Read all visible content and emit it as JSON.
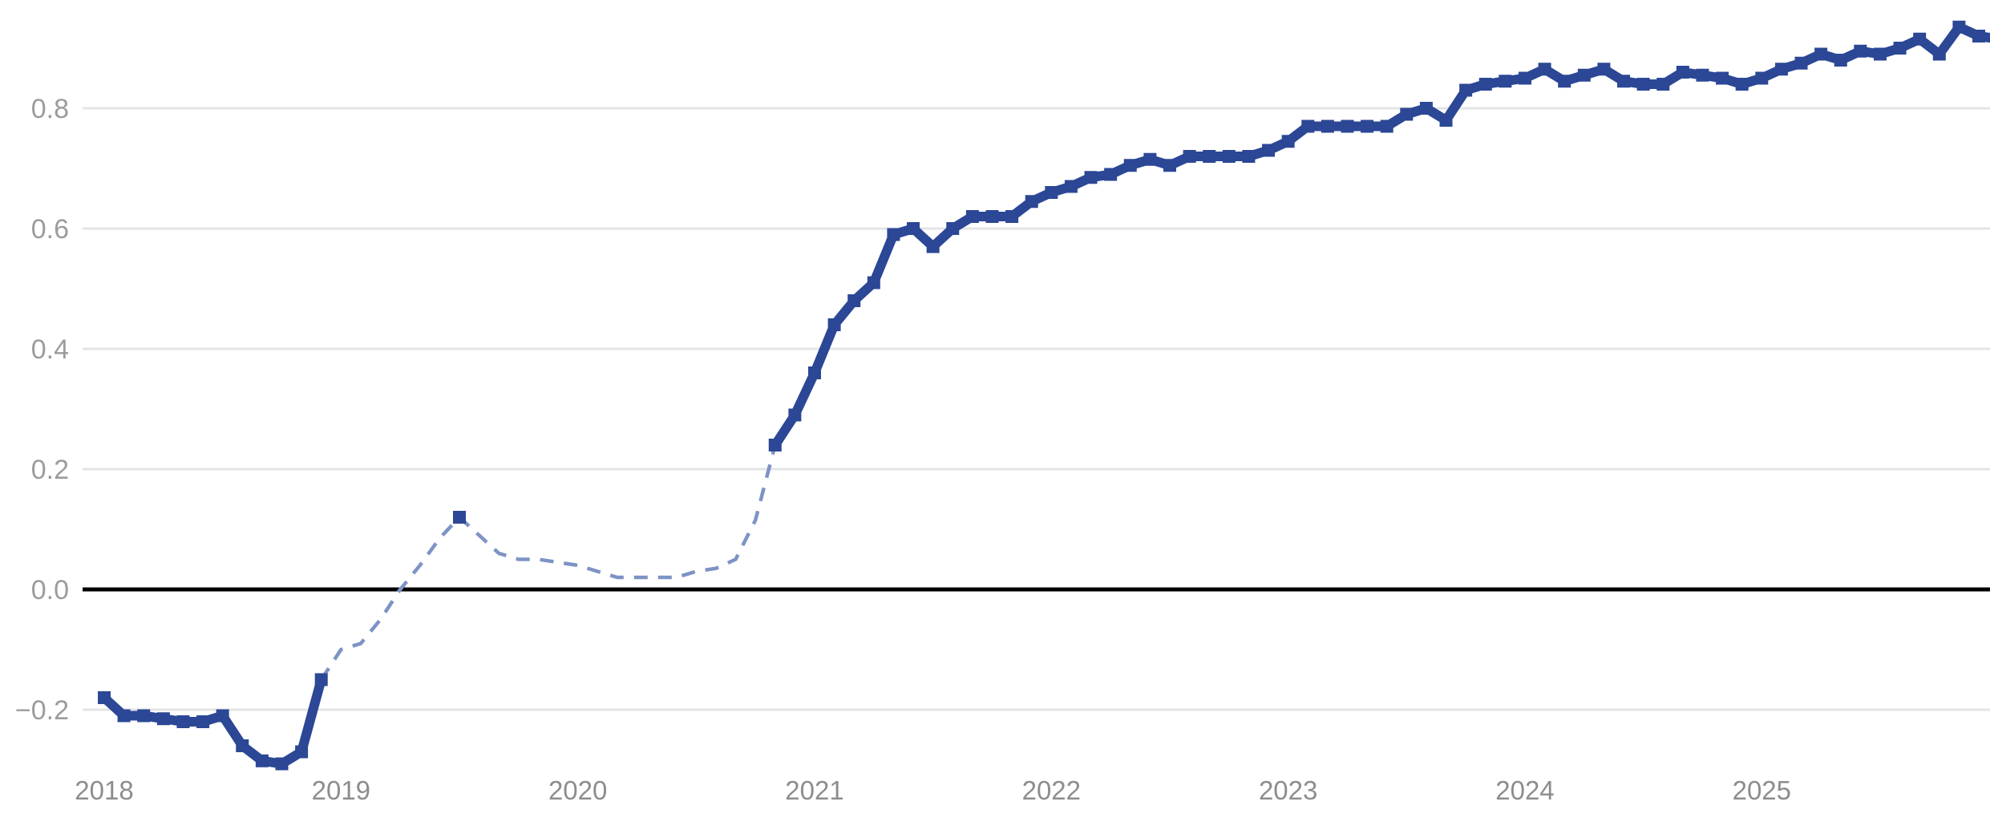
{
  "chart_data": {
    "type": "line",
    "title": "",
    "xlabel": "",
    "ylabel": "",
    "legend": "none",
    "grid": "horizontal-only",
    "note": "single navy series; middle span 2019-2020 drawn as light dashed interpolation with one square marker at its 2019 peak; line exits plot at right edge",
    "x_axis": {
      "tick_labels": [
        "2018",
        "2019",
        "2020",
        "2021",
        "2022",
        "2023",
        "2024",
        "2025"
      ],
      "tick_years": [
        2018,
        2019,
        2020,
        2021,
        2022,
        2023,
        2024,
        2025
      ],
      "range_years": [
        2018.0,
        2025.96
      ]
    },
    "y_axis": {
      "tick_labels": [
        "0.8",
        "0.6",
        "0.4",
        "0.2",
        "0.0",
        "−0.2"
      ],
      "tick_values": [
        0.8,
        0.6,
        0.4,
        0.2,
        0.0,
        -0.2
      ],
      "baseline_value": 0.0,
      "ylim": [
        -0.407,
        0.98
      ]
    },
    "colors": {
      "line": "#2b4795",
      "dashed_line": "#7e93c5",
      "grid_line": "#e4e4e4",
      "zero_baseline": "#000000",
      "y_tick_text": "#9c9c9c",
      "x_tick_text": "#8d8d8d",
      "background": "#ffffff"
    },
    "series": [
      {
        "name": "observed-2018",
        "style": "solid",
        "markers": true,
        "points": [
          [
            "2018-01",
            -0.18
          ],
          [
            "2018-02",
            -0.21
          ],
          [
            "2018-03",
            -0.21
          ],
          [
            "2018-04",
            -0.215
          ],
          [
            "2018-05",
            -0.22
          ],
          [
            "2018-06",
            -0.22
          ],
          [
            "2018-07",
            -0.21
          ],
          [
            "2018-08",
            -0.26
          ],
          [
            "2018-09",
            -0.285
          ],
          [
            "2018-10",
            -0.29
          ],
          [
            "2018-11",
            -0.27
          ],
          [
            "2018-12",
            -0.15
          ]
        ]
      },
      {
        "name": "interpolated-2019-2020",
        "style": "dashed",
        "markers": false,
        "marker_points": [
          [
            "2019-07",
            0.12
          ]
        ],
        "points": [
          [
            "2018-12",
            -0.15
          ],
          [
            "2019-01",
            -0.1
          ],
          [
            "2019-02",
            -0.09
          ],
          [
            "2019-03",
            -0.05
          ],
          [
            "2019-04",
            0.0
          ],
          [
            "2019-05",
            0.04
          ],
          [
            "2019-06",
            0.085
          ],
          [
            "2019-07",
            0.12
          ],
          [
            "2019-08",
            0.09
          ],
          [
            "2019-09",
            0.06
          ],
          [
            "2019-10",
            0.05
          ],
          [
            "2019-11",
            0.05
          ],
          [
            "2019-12",
            0.045
          ],
          [
            "2020-01",
            0.04
          ],
          [
            "2020-02",
            0.03
          ],
          [
            "2020-03",
            0.02
          ],
          [
            "2020-04",
            0.02
          ],
          [
            "2020-05",
            0.02
          ],
          [
            "2020-06",
            0.02
          ],
          [
            "2020-07",
            0.03
          ],
          [
            "2020-08",
            0.035
          ],
          [
            "2020-09",
            0.05
          ],
          [
            "2020-10",
            0.115
          ],
          [
            "2020-11",
            0.24
          ]
        ]
      },
      {
        "name": "observed-2020-2025",
        "style": "solid",
        "markers": true,
        "points": [
          [
            "2020-11",
            0.24
          ],
          [
            "2020-12",
            0.29
          ],
          [
            "2021-01",
            0.36
          ],
          [
            "2021-02",
            0.44
          ],
          [
            "2021-03",
            0.48
          ],
          [
            "2021-04",
            0.51
          ],
          [
            "2021-05",
            0.59
          ],
          [
            "2021-06",
            0.6
          ],
          [
            "2021-07",
            0.57
          ],
          [
            "2021-08",
            0.6
          ],
          [
            "2021-09",
            0.62
          ],
          [
            "2021-10",
            0.62
          ],
          [
            "2021-11",
            0.62
          ],
          [
            "2021-12",
            0.645
          ],
          [
            "2022-01",
            0.66
          ],
          [
            "2022-02",
            0.67
          ],
          [
            "2022-03",
            0.685
          ],
          [
            "2022-04",
            0.69
          ],
          [
            "2022-05",
            0.705
          ],
          [
            "2022-06",
            0.715
          ],
          [
            "2022-07",
            0.705
          ],
          [
            "2022-08",
            0.72
          ],
          [
            "2022-09",
            0.72
          ],
          [
            "2022-10",
            0.72
          ],
          [
            "2022-11",
            0.72
          ],
          [
            "2022-12",
            0.73
          ],
          [
            "2023-01",
            0.745
          ],
          [
            "2023-02",
            0.77
          ],
          [
            "2023-03",
            0.77
          ],
          [
            "2023-04",
            0.77
          ],
          [
            "2023-05",
            0.77
          ],
          [
            "2023-06",
            0.77
          ],
          [
            "2023-07",
            0.79
          ],
          [
            "2023-08",
            0.8
          ],
          [
            "2023-09",
            0.78
          ],
          [
            "2023-10",
            0.83
          ],
          [
            "2023-11",
            0.84
          ],
          [
            "2023-12",
            0.845
          ],
          [
            "2024-01",
            0.85
          ],
          [
            "2024-02",
            0.865
          ],
          [
            "2024-03",
            0.845
          ],
          [
            "2024-04",
            0.855
          ],
          [
            "2024-05",
            0.865
          ],
          [
            "2024-06",
            0.845
          ],
          [
            "2024-07",
            0.84
          ],
          [
            "2024-08",
            0.84
          ],
          [
            "2024-09",
            0.86
          ],
          [
            "2024-10",
            0.855
          ],
          [
            "2024-11",
            0.85
          ],
          [
            "2024-12",
            0.84
          ],
          [
            "2025-01",
            0.85
          ],
          [
            "2025-02",
            0.865
          ],
          [
            "2025-03",
            0.875
          ],
          [
            "2025-04",
            0.89
          ],
          [
            "2025-05",
            0.88
          ],
          [
            "2025-06",
            0.895
          ],
          [
            "2025-07",
            0.89
          ],
          [
            "2025-08",
            0.9
          ],
          [
            "2025-09",
            0.915
          ],
          [
            "2025-10",
            0.89
          ],
          [
            "2025-11",
            0.935
          ],
          [
            "2025-12",
            0.92
          ],
          [
            "2026-01",
            0.915
          ]
        ]
      }
    ]
  }
}
